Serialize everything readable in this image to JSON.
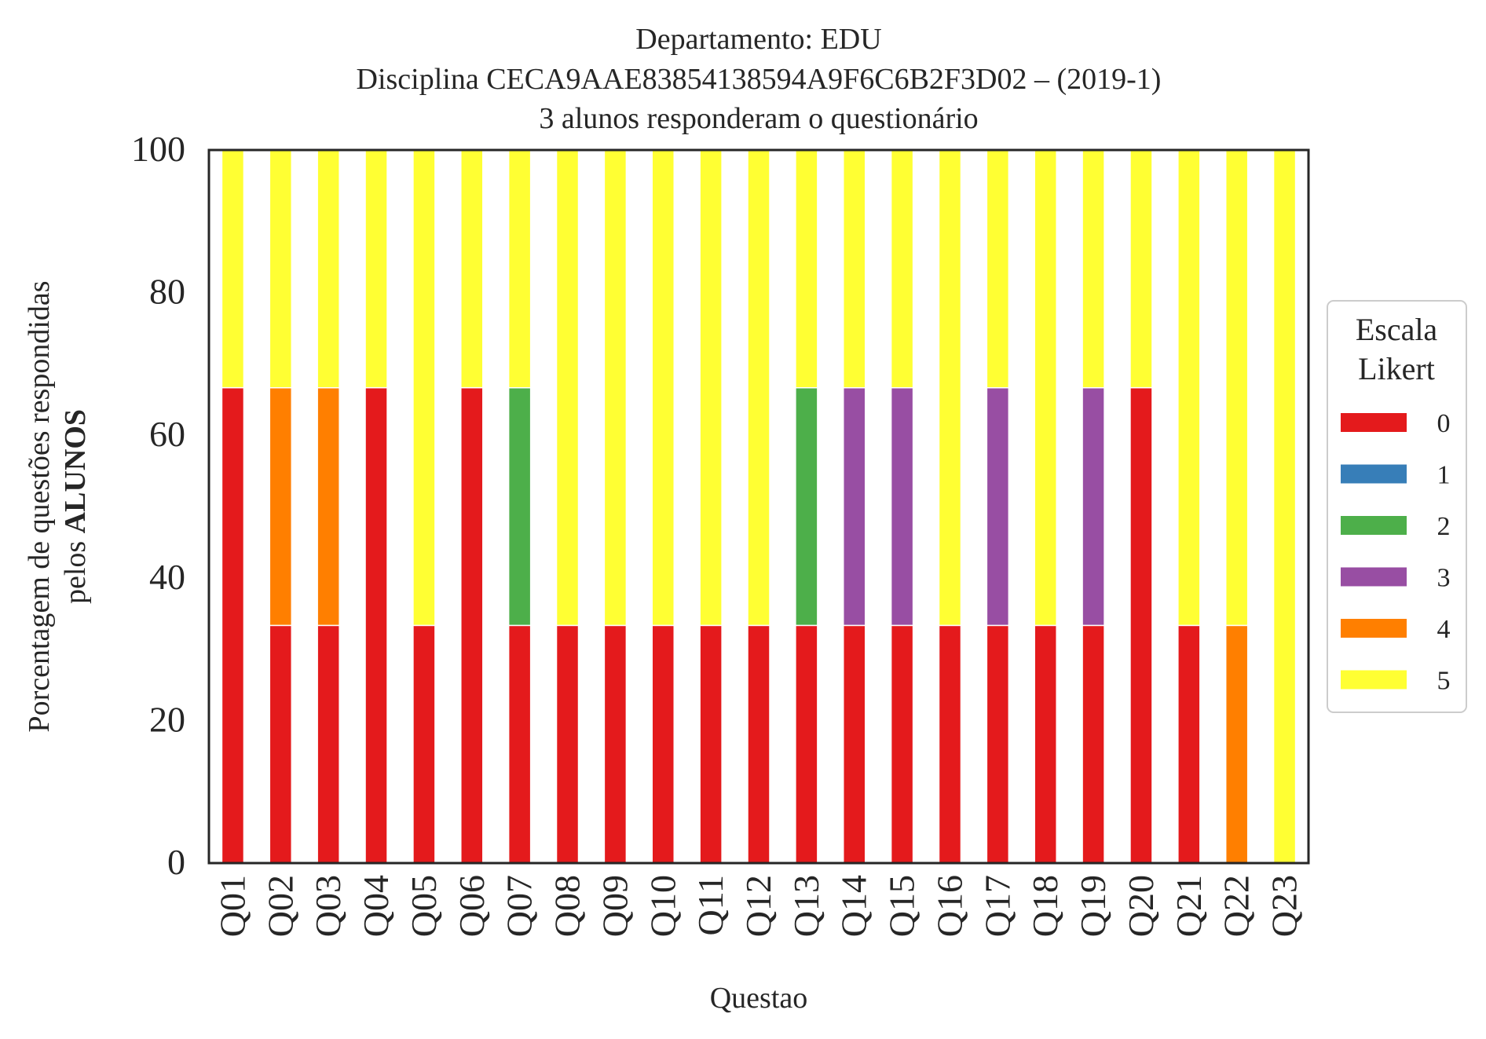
{
  "chart_data": {
    "type": "bar",
    "stacked": true,
    "title_lines": [
      "Departamento: EDU",
      "Disciplina CECA9AAE83854138594A9F6C6B2F3D02 – (2019-1)",
      "3 alunos responderam o questionário"
    ],
    "xlabel": "Questao",
    "ylabel_line1": "Porcentagem de questões respondidas",
    "ylabel_line2_prefix": "pelos ",
    "ylabel_line2_bold": "ALUNOS",
    "ylim": [
      0,
      100
    ],
    "yticks": [
      "0",
      "20",
      "40",
      "60",
      "80",
      "100"
    ],
    "grid": false,
    "legend": {
      "title_line1": "Escala",
      "title_line2": "Likert",
      "placement": "center-right outside"
    },
    "categories": [
      "Q01",
      "Q02",
      "Q03",
      "Q04",
      "Q05",
      "Q06",
      "Q07",
      "Q08",
      "Q09",
      "Q10",
      "Q11",
      "Q12",
      "Q13",
      "Q14",
      "Q15",
      "Q16",
      "Q17",
      "Q18",
      "Q19",
      "Q20",
      "Q21",
      "Q22",
      "Q23"
    ],
    "series": [
      {
        "name": "0",
        "color": "#e41a1c",
        "values": [
          66.67,
          33.33,
          33.33,
          66.67,
          33.33,
          66.67,
          33.33,
          33.33,
          33.33,
          33.33,
          33.33,
          33.33,
          33.33,
          33.33,
          33.33,
          33.33,
          33.33,
          33.33,
          33.33,
          66.67,
          33.33,
          0,
          0
        ]
      },
      {
        "name": "1",
        "color": "#377eb8",
        "values": [
          0,
          0,
          0,
          0,
          0,
          0,
          0,
          0,
          0,
          0,
          0,
          0,
          0,
          0,
          0,
          0,
          0,
          0,
          0,
          0,
          0,
          0,
          0
        ]
      },
      {
        "name": "2",
        "color": "#4daf4a",
        "values": [
          0,
          0,
          0,
          0,
          0,
          0,
          33.33,
          0,
          0,
          0,
          0,
          0,
          33.33,
          0,
          0,
          0,
          0,
          0,
          0,
          0,
          0,
          0,
          0
        ]
      },
      {
        "name": "3",
        "color": "#984ea3",
        "values": [
          0,
          0,
          0,
          0,
          0,
          0,
          0,
          0,
          0,
          0,
          0,
          0,
          0,
          33.33,
          33.33,
          0,
          33.33,
          0,
          33.33,
          0,
          0,
          0,
          0
        ]
      },
      {
        "name": "4",
        "color": "#ff7f00",
        "values": [
          0,
          33.33,
          33.33,
          0,
          0,
          0,
          0,
          0,
          0,
          0,
          0,
          0,
          0,
          0,
          0,
          0,
          0,
          0,
          0,
          0,
          0,
          33.33,
          0
        ]
      },
      {
        "name": "5",
        "color": "#ffff33",
        "values": [
          33.33,
          33.33,
          33.33,
          33.33,
          66.67,
          33.33,
          33.33,
          66.67,
          66.67,
          66.67,
          66.67,
          66.67,
          33.33,
          33.33,
          33.33,
          66.67,
          33.33,
          66.67,
          33.33,
          33.33,
          66.67,
          66.67,
          100
        ]
      }
    ]
  }
}
